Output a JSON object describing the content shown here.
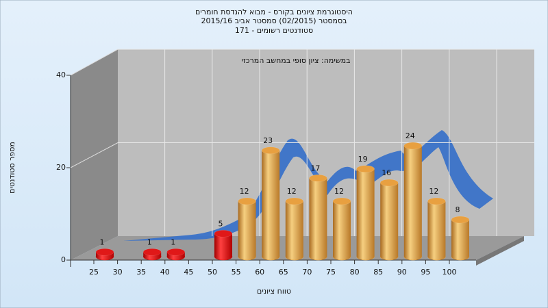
{
  "chart_data": {
    "type": "bar3d",
    "title": [
      "היסטוגרמת ציונים בקורס - מבוא להנדסת חומרים",
      "בסמסטר  (02/2015)  סמסטר אביב 2015/16",
      "סטודנטים רשומים - 171"
    ],
    "annotation": "במשימה: ציון סופי במחשב המרכזי",
    "ylabel": "מספר סטודנטים",
    "xlabel": "טווח ציונים",
    "categories": [
      "25",
      "30",
      "35",
      "40",
      "45",
      "50",
      "55",
      "60",
      "65",
      "70",
      "75",
      "80",
      "85",
      "90",
      "95",
      "100"
    ],
    "values": [
      1,
      null,
      1,
      1,
      null,
      5,
      12,
      23,
      12,
      17,
      12,
      19,
      16,
      24,
      12,
      8
    ],
    "colors": [
      "#e01818",
      null,
      "#e01818",
      "#e01818",
      null,
      "#e01818",
      "#e8a040",
      "#e8a040",
      "#e8a040",
      "#e8a040",
      "#e8a040",
      "#e8a040",
      "#e8a040",
      "#e8a040",
      "#e8a040",
      "#e8a040"
    ],
    "ylim": [
      0,
      40
    ],
    "yticks": [
      0,
      20,
      40
    ],
    "grid": true
  }
}
